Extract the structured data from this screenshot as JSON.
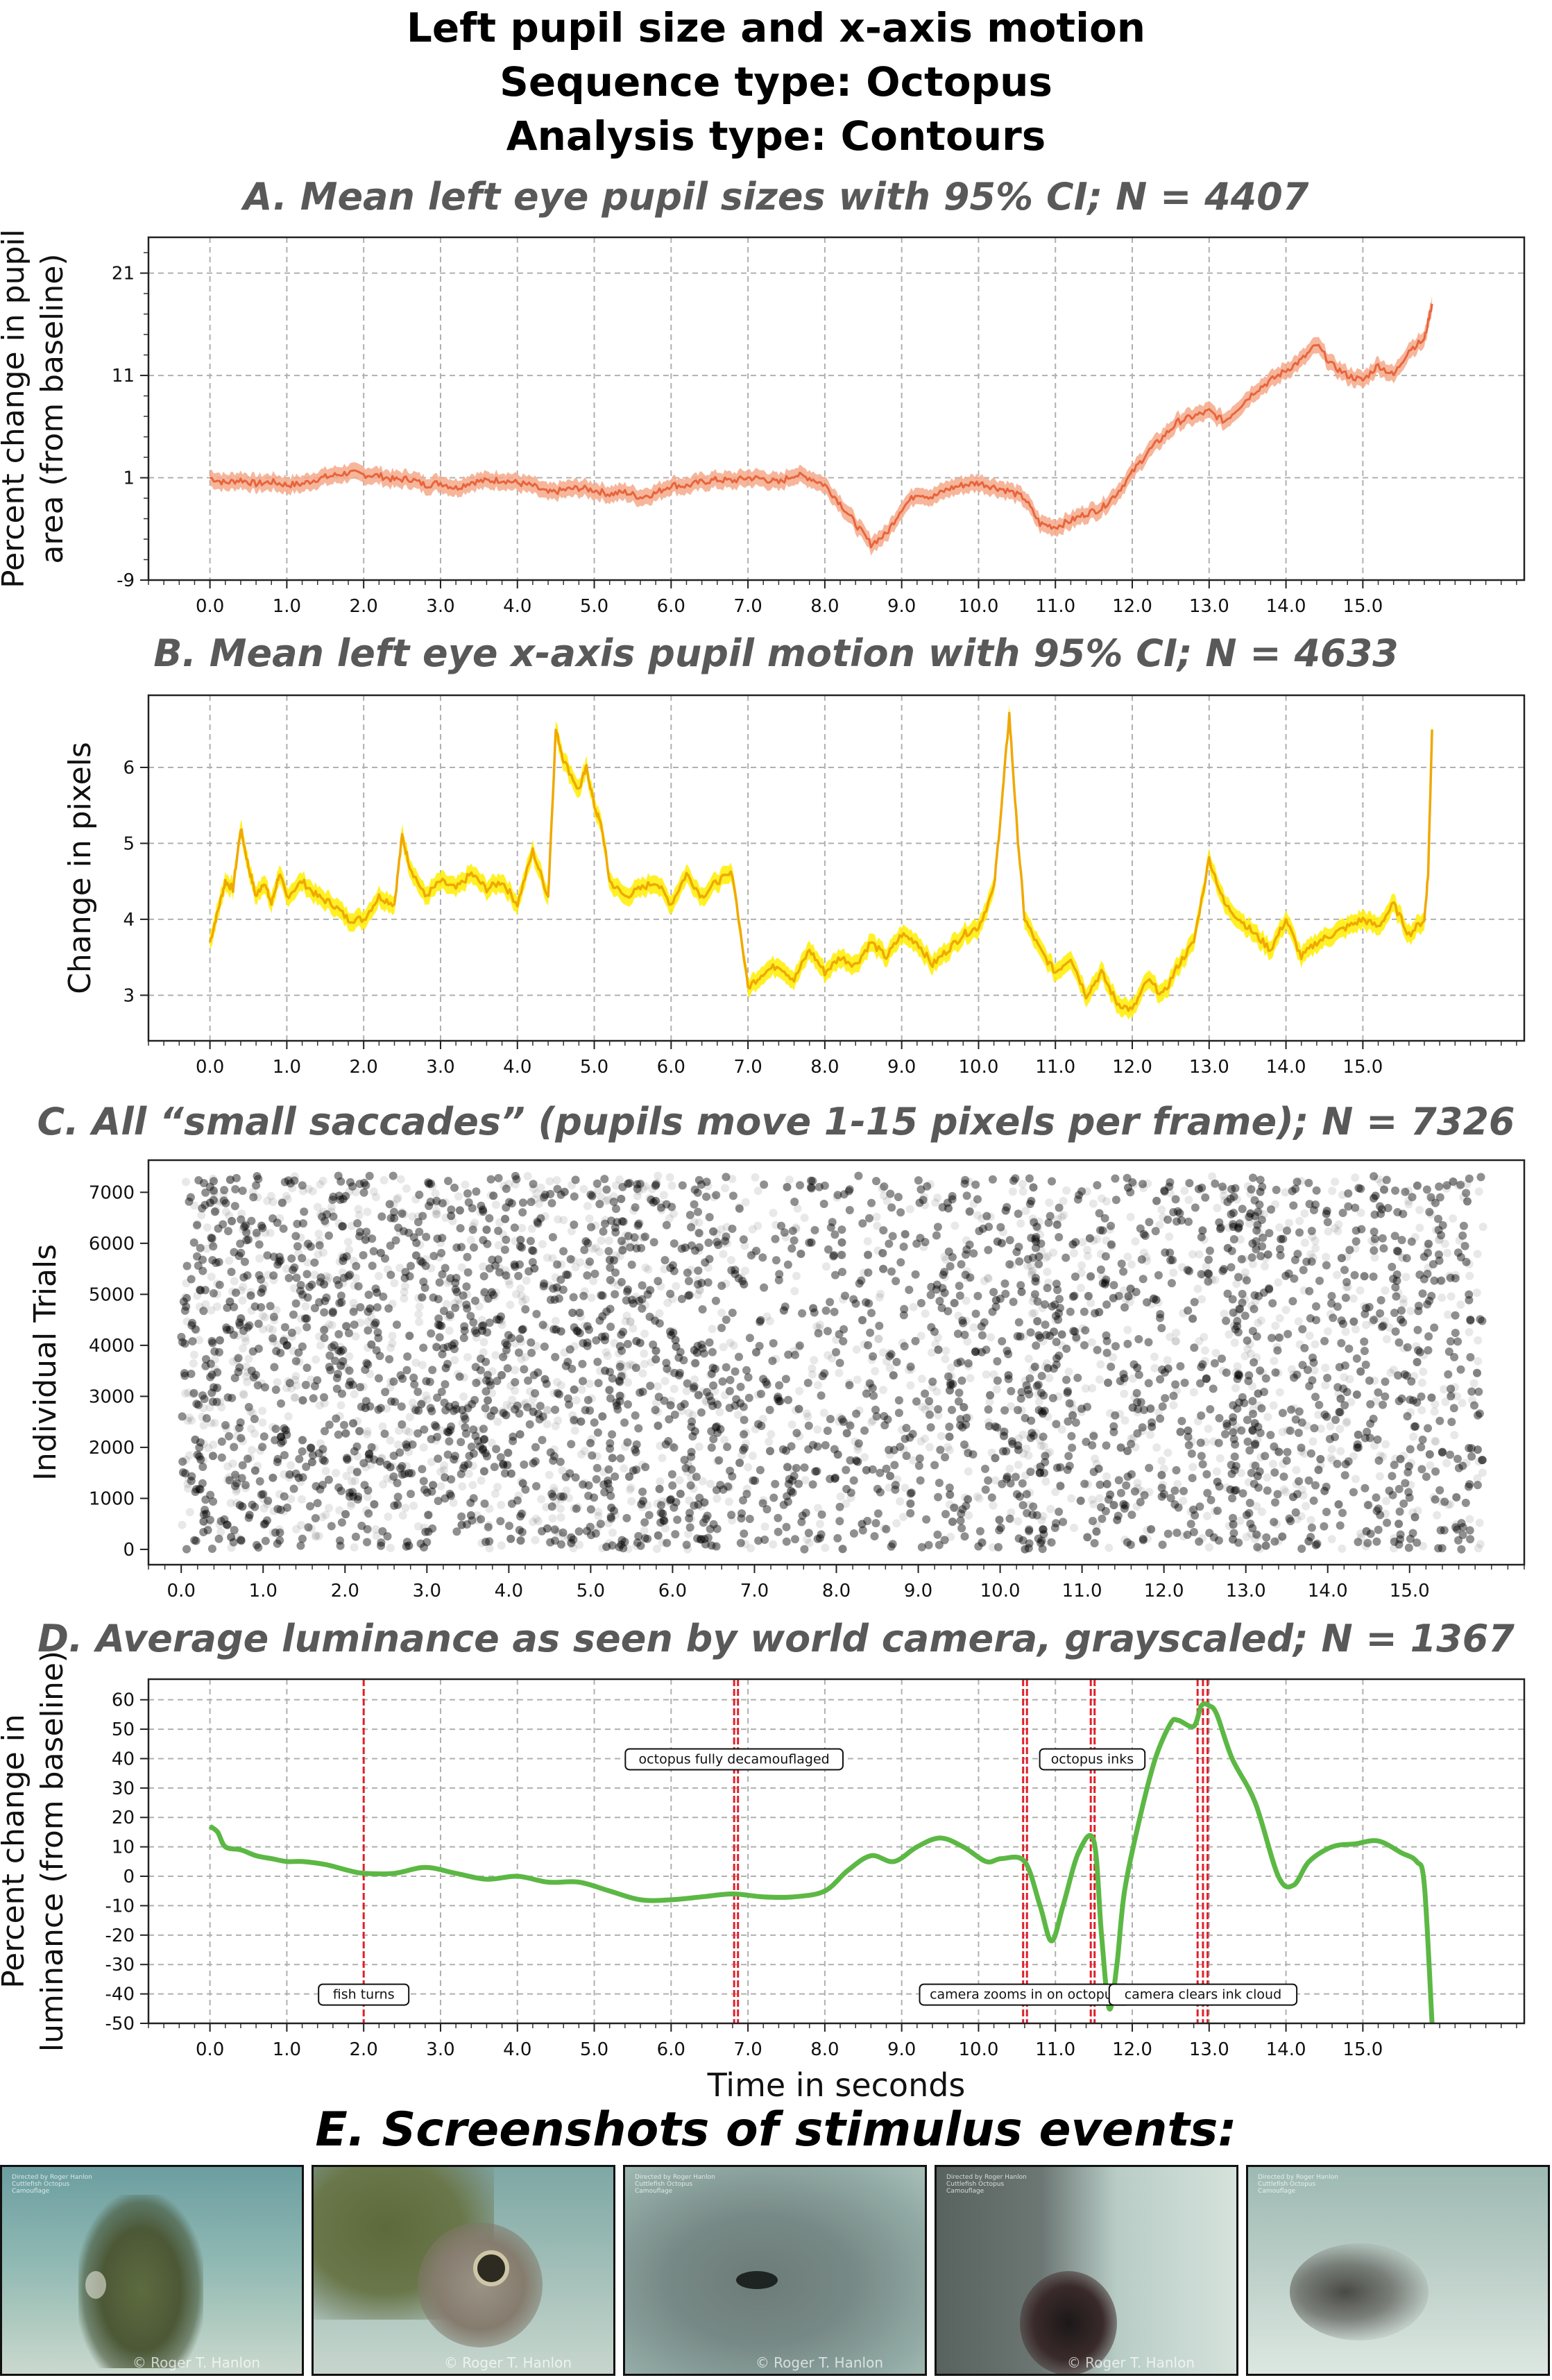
{
  "title": {
    "line1": "Left pupil size and x-axis motion",
    "line2": "Sequence type: Octopus",
    "line3": "Analysis type: Contours"
  },
  "panels": {
    "a": {
      "title": "A. Mean left eye pupil sizes with 95% CI; N = 4407"
    },
    "b": {
      "title": "B. Mean left eye x-axis pupil motion with 95% CI; N = 4633"
    },
    "c": {
      "title": "C. All “small saccades” (pupils move 1-15 pixels per frame); N = 7326"
    },
    "d": {
      "title": "D. Average luminance as seen by world camera, grayscaled; N = 1367"
    },
    "e": {
      "title": "E. Screenshots of stimulus events:"
    }
  },
  "colors": {
    "a_line": "#e8643c",
    "a_band": "#f4a98a",
    "b_line": "#f0a800",
    "b_band": "#ffee00",
    "c_dots": "#000000",
    "d_line": "#5cb844",
    "d_events": "#e0202a"
  },
  "chart_data": [
    {
      "id": "a",
      "type": "line",
      "ylabel": [
        "Percent change in pupil",
        "area (from baseline)"
      ],
      "xlabel": "",
      "xlim": [
        -0.8,
        17.1
      ],
      "ylim": [
        -9,
        24.5
      ],
      "xticks": [
        0.0,
        1.0,
        2.0,
        3.0,
        4.0,
        5.0,
        6.0,
        7.0,
        8.0,
        9.0,
        10.0,
        11.0,
        12.0,
        13.0,
        14.0,
        15.0
      ],
      "yticks": [
        -9,
        1,
        11,
        21
      ],
      "grid": true,
      "series": [
        {
          "x": [
            0.0,
            0.2,
            0.4,
            0.6,
            0.8,
            1.0,
            1.2,
            1.4,
            1.6,
            1.8,
            2.0,
            2.2,
            2.4,
            2.6,
            2.8,
            3.0,
            3.2,
            3.4,
            3.6,
            3.8,
            4.0,
            4.2,
            4.4,
            4.6,
            4.8,
            5.0,
            5.2,
            5.4,
            5.6,
            5.8,
            6.0,
            6.2,
            6.4,
            6.6,
            6.8,
            7.0,
            7.2,
            7.4,
            7.6,
            7.8,
            8.0,
            8.2,
            8.4,
            8.6,
            8.8,
            9.0,
            9.2,
            9.4,
            9.6,
            9.8,
            10.0,
            10.2,
            10.4,
            10.6,
            10.8,
            11.0,
            11.2,
            11.4,
            11.6,
            11.8,
            12.0,
            12.2,
            12.4,
            12.6,
            12.8,
            13.0,
            13.2,
            13.4,
            13.6,
            13.8,
            14.0,
            14.2,
            14.4,
            14.6,
            14.8,
            15.0,
            15.2,
            15.4,
            15.6,
            15.8,
            15.9
          ],
          "y": [
            1.0,
            0.5,
            0.8,
            0.4,
            0.6,
            0.3,
            0.4,
            0.9,
            1.2,
            1.5,
            1.3,
            1.2,
            0.8,
            0.9,
            0.3,
            0.5,
            0.0,
            0.6,
            0.7,
            0.8,
            0.5,
            0.2,
            -0.5,
            -0.2,
            0.0,
            -0.2,
            -0.6,
            -0.4,
            -0.9,
            -0.5,
            0.3,
            0.2,
            0.6,
            0.8,
            0.7,
            1.0,
            0.9,
            0.5,
            1.3,
            1.0,
            0.3,
            -1.5,
            -3.5,
            -5.5,
            -4.5,
            -2.0,
            -0.5,
            -0.9,
            -0.1,
            0.3,
            0.5,
            0.1,
            -0.3,
            -1.0,
            -3.5,
            -3.8,
            -3.2,
            -2.5,
            -2.0,
            -0.5,
            1.5,
            3.5,
            5.0,
            6.5,
            7.0,
            7.5,
            6.5,
            8.0,
            9.5,
            10.5,
            11.5,
            12.5,
            14.0,
            12.0,
            11.0,
            10.5,
            12.0,
            11.0,
            13.5,
            14.5,
            18.0
          ],
          "ci": 0.8
        }
      ]
    },
    {
      "id": "b",
      "type": "line",
      "ylabel": [
        "Change in pixels"
      ],
      "xlabel": "",
      "xlim": [
        -0.8,
        17.1
      ],
      "ylim": [
        2.4,
        6.95
      ],
      "xticks": [
        0.0,
        1.0,
        2.0,
        3.0,
        4.0,
        5.0,
        6.0,
        7.0,
        8.0,
        9.0,
        10.0,
        11.0,
        12.0,
        13.0,
        14.0,
        15.0
      ],
      "yticks": [
        3,
        4,
        5,
        6
      ],
      "grid": true,
      "series": [
        {
          "x": [
            0.0,
            0.1,
            0.2,
            0.3,
            0.4,
            0.5,
            0.6,
            0.7,
            0.8,
            0.9,
            1.0,
            1.2,
            1.4,
            1.6,
            1.8,
            2.0,
            2.2,
            2.4,
            2.5,
            2.6,
            2.8,
            3.0,
            3.2,
            3.4,
            3.6,
            3.8,
            4.0,
            4.2,
            4.4,
            4.5,
            4.6,
            4.8,
            4.9,
            5.0,
            5.1,
            5.2,
            5.4,
            5.6,
            5.8,
            6.0,
            6.2,
            6.4,
            6.6,
            6.8,
            7.0,
            7.2,
            7.4,
            7.6,
            7.8,
            8.0,
            8.2,
            8.4,
            8.6,
            8.8,
            9.0,
            9.2,
            9.4,
            9.6,
            9.8,
            10.0,
            10.2,
            10.3,
            10.4,
            10.5,
            10.6,
            10.8,
            11.0,
            11.2,
            11.4,
            11.6,
            11.8,
            12.0,
            12.2,
            12.4,
            12.6,
            12.8,
            13.0,
            13.2,
            13.4,
            13.6,
            13.8,
            14.0,
            14.2,
            14.4,
            14.6,
            14.8,
            15.0,
            15.2,
            15.4,
            15.6,
            15.8,
            15.85,
            15.9
          ],
          "y": [
            3.7,
            4.1,
            4.5,
            4.4,
            5.2,
            4.7,
            4.3,
            4.5,
            4.2,
            4.6,
            4.3,
            4.5,
            4.3,
            4.2,
            4.0,
            4.0,
            4.3,
            4.2,
            5.1,
            4.7,
            4.3,
            4.5,
            4.4,
            4.6,
            4.4,
            4.5,
            4.2,
            4.9,
            4.3,
            6.5,
            6.1,
            5.7,
            6.0,
            5.5,
            5.2,
            4.5,
            4.3,
            4.4,
            4.5,
            4.2,
            4.6,
            4.3,
            4.5,
            4.6,
            3.1,
            3.3,
            3.4,
            3.2,
            3.6,
            3.3,
            3.5,
            3.4,
            3.7,
            3.5,
            3.8,
            3.7,
            3.4,
            3.6,
            3.8,
            3.9,
            4.4,
            5.5,
            6.7,
            5.2,
            4.0,
            3.6,
            3.3,
            3.5,
            3.0,
            3.3,
            2.9,
            2.8,
            3.2,
            3.0,
            3.4,
            3.7,
            4.8,
            4.2,
            4.0,
            3.8,
            3.6,
            4.0,
            3.5,
            3.7,
            3.8,
            3.9,
            4.0,
            3.9,
            4.2,
            3.8,
            4.0,
            4.6,
            6.5
          ],
          "ci": 0.12
        }
      ]
    },
    {
      "id": "c",
      "type": "scatter",
      "ylabel": [
        "Individual Trials"
      ],
      "xlabel": "",
      "xlim": [
        -0.4,
        16.4
      ],
      "ylim": [
        -300,
        7630
      ],
      "xticks": [
        0.0,
        1.0,
        2.0,
        3.0,
        4.0,
        5.0,
        6.0,
        7.0,
        8.0,
        9.0,
        10.0,
        11.0,
        12.0,
        13.0,
        14.0,
        15.0
      ],
      "yticks": [
        0,
        1000,
        2000,
        3000,
        4000,
        5000,
        6000,
        7000
      ],
      "grid": false,
      "n_trials": 7326,
      "x_range": [
        0.0,
        15.9
      ],
      "dense_bands": [
        [
          0.0,
          6.9,
          1.0
        ],
        [
          6.9,
          9.0,
          0.62
        ],
        [
          9.0,
          10.2,
          0.78
        ],
        [
          10.2,
          10.6,
          1.25
        ],
        [
          10.6,
          12.8,
          0.72
        ],
        [
          12.8,
          13.2,
          1.3
        ],
        [
          13.2,
          15.9,
          0.75
        ]
      ]
    },
    {
      "id": "d",
      "type": "line",
      "ylabel": [
        "Percent change in",
        "luminance (from baseline)"
      ],
      "xlabel": "Time in seconds",
      "xlim": [
        -0.8,
        17.1
      ],
      "ylim": [
        -50,
        67
      ],
      "xticks": [
        0.0,
        1.0,
        2.0,
        3.0,
        4.0,
        5.0,
        6.0,
        7.0,
        8.0,
        9.0,
        10.0,
        11.0,
        12.0,
        13.0,
        14.0,
        15.0
      ],
      "yticks": [
        -50,
        -40,
        -30,
        -20,
        -10,
        0,
        10,
        20,
        30,
        40,
        50,
        60
      ],
      "grid": true,
      "series": [
        {
          "x": [
            0.0,
            0.1,
            0.2,
            0.4,
            0.6,
            0.8,
            1.0,
            1.2,
            1.5,
            1.8,
            2.0,
            2.4,
            2.8,
            3.2,
            3.6,
            4.0,
            4.4,
            4.8,
            5.2,
            5.6,
            6.0,
            6.4,
            6.8,
            7.2,
            7.6,
            8.0,
            8.3,
            8.6,
            8.9,
            9.2,
            9.5,
            9.8,
            10.1,
            10.3,
            10.6,
            10.8,
            10.95,
            11.1,
            11.3,
            11.5,
            11.6,
            11.7,
            11.8,
            11.9,
            12.1,
            12.3,
            12.5,
            12.6,
            12.8,
            12.9,
            13.0,
            13.1,
            13.3,
            13.6,
            13.9,
            14.1,
            14.3,
            14.6,
            14.9,
            15.2,
            15.5,
            15.7,
            15.8,
            15.9
          ],
          "y": [
            17,
            15,
            10,
            9,
            7,
            6,
            5,
            5,
            4,
            2,
            1,
            1,
            3,
            1,
            -1,
            0,
            -2,
            -2,
            -5,
            -8,
            -8,
            -7,
            -6,
            -7,
            -7,
            -5,
            2,
            7,
            5,
            10,
            13,
            10,
            5,
            6,
            5,
            -10,
            -22,
            -10,
            8,
            12,
            -20,
            -45,
            -30,
            -5,
            20,
            40,
            52,
            53,
            51,
            58,
            58,
            55,
            40,
            25,
            0,
            -3,
            5,
            10,
            11,
            12,
            8,
            5,
            -3,
            -50
          ]
        }
      ],
      "events": [
        2.0,
        6.82,
        6.87,
        10.58,
        10.63,
        11.46,
        11.51,
        12.85,
        12.92,
        12.98
      ],
      "annotations": [
        {
          "text": "fish turns",
          "x": 2.0,
          "y": -40
        },
        {
          "text": "octopus fully decamouflaged",
          "x": 6.82,
          "y": 40
        },
        {
          "text": "camera zooms in on octopus",
          "x": 10.6,
          "y": -40
        },
        {
          "text": "octopus inks",
          "x": 11.48,
          "y": 40
        },
        {
          "text": "camera clears ink cloud",
          "x": 12.92,
          "y": -40
        }
      ]
    }
  ],
  "screenshots": [
    {
      "caption_top": "Directed by Roger Hanlon  Cuttlefish Octopus Camouflage",
      "credit": "© Roger T. Hanlon"
    },
    {
      "caption_top": "",
      "credit": "© Roger T. Hanlon"
    },
    {
      "caption_top": "Directed by Roger Hanlon  Cuttlefish Octopus Camouflage",
      "credit": "© Roger T. Hanlon"
    },
    {
      "caption_top": "Directed by Roger Hanlon  Cuttlefish Octopus Camouflage",
      "credit": "© Roger T. Hanlon"
    },
    {
      "caption_top": "Directed by Roger Hanlon  Cuttlefish Octopus Camouflage",
      "credit": ""
    }
  ]
}
